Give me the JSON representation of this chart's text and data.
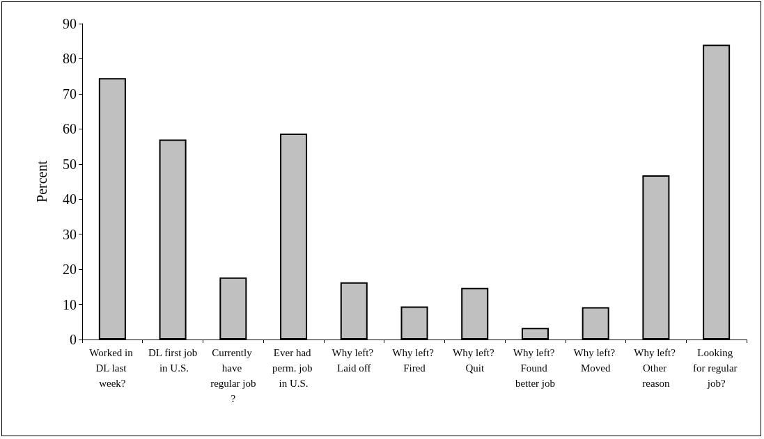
{
  "chart_data": {
    "type": "bar",
    "ylabel": "Percent",
    "categories": [
      "Worked in DL last week?",
      "DL first job in U.S.",
      "Currently have regular job?",
      "Ever had perm. job in U.S.",
      "Why left? Laid off",
      "Why left? Fired",
      "Why left? Quit",
      "Why left? Found better job",
      "Why left? Moved",
      "Why left? Other reason",
      "Looking for regular job?"
    ],
    "values": [
      74.5,
      57,
      17.7,
      58.7,
      16.3,
      9.4,
      14.7,
      3.3,
      9.2,
      46.8,
      84
    ],
    "color": "#c0c0c0",
    "ylim": [
      0,
      90
    ],
    "yticks": [
      0,
      10,
      20,
      30,
      40,
      50,
      60,
      70,
      80,
      90
    ],
    "grid": false
  }
}
